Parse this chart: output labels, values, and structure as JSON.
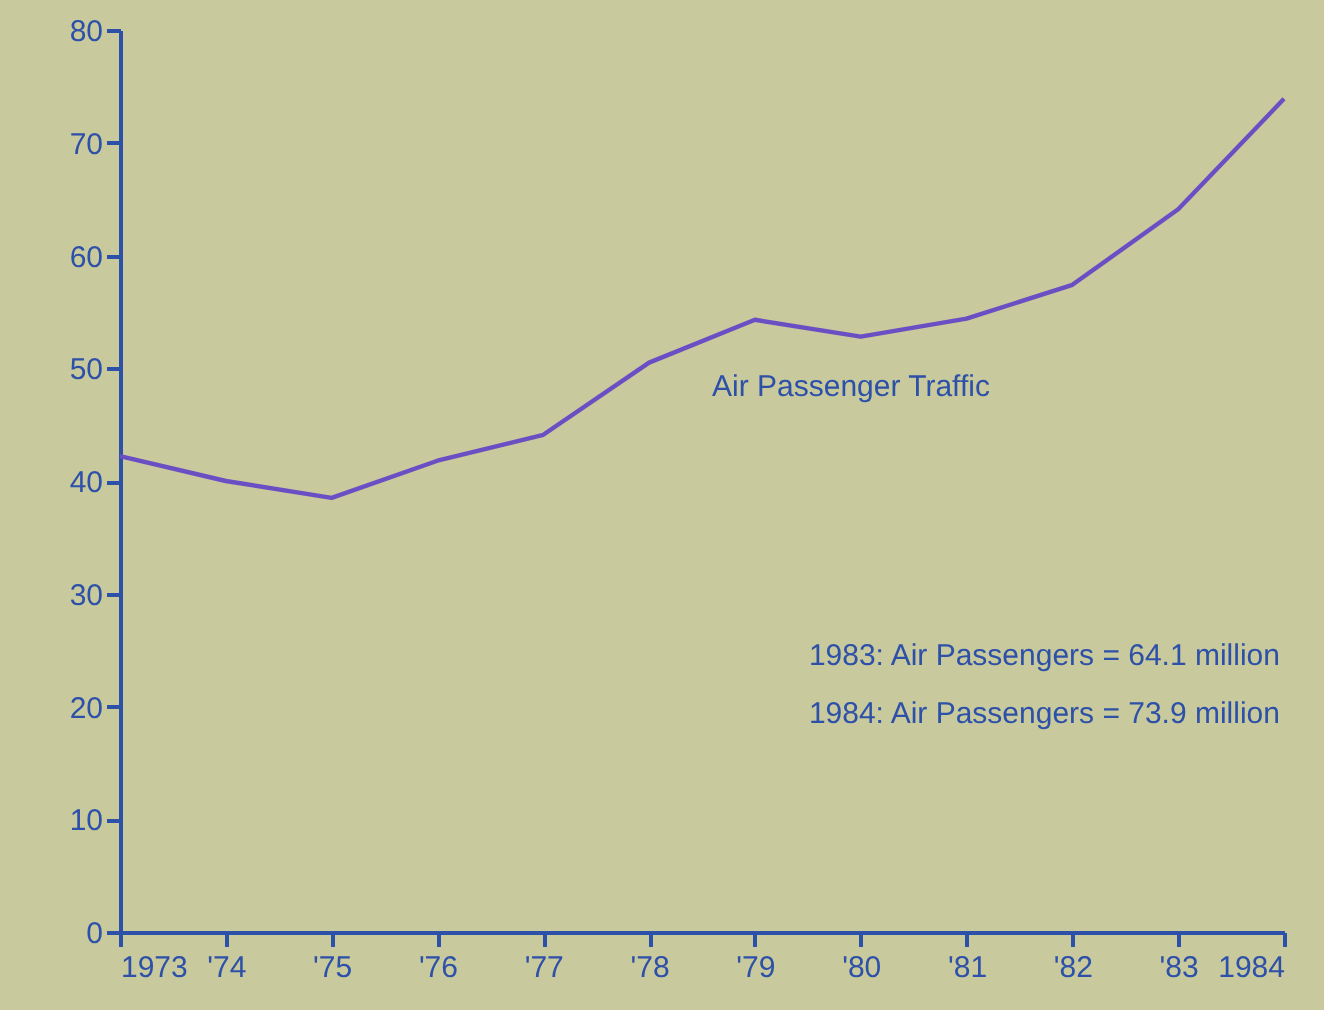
{
  "chart_data": {
    "type": "line",
    "x": [
      1973,
      1974,
      1975,
      1976,
      1977,
      1978,
      1979,
      1980,
      1981,
      1982,
      1983,
      1984
    ],
    "series": [
      {
        "name": "Air Passenger Traffic",
        "color": "#6a4fc4",
        "values": [
          42.2,
          40.0,
          38.5,
          41.8,
          44.1,
          50.5,
          54.3,
          52.8,
          54.4,
          57.4,
          64.1,
          73.9
        ]
      }
    ],
    "xlim": [
      1973,
      1984
    ],
    "xticks": [
      {
        "value": 1973,
        "label": "1973"
      },
      {
        "value": 1974,
        "label": "'74"
      },
      {
        "value": 1975,
        "label": "'75"
      },
      {
        "value": 1976,
        "label": "'76"
      },
      {
        "value": 1977,
        "label": "'77"
      },
      {
        "value": 1978,
        "label": "'78"
      },
      {
        "value": 1979,
        "label": "'79"
      },
      {
        "value": 1980,
        "label": "'80"
      },
      {
        "value": 1981,
        "label": "'81"
      },
      {
        "value": 1982,
        "label": "'82"
      },
      {
        "value": 1983,
        "label": "'83"
      },
      {
        "value": 1984,
        "label": "1984"
      }
    ],
    "ylim": [
      0,
      80
    ],
    "yticks": [
      0,
      10,
      20,
      30,
      40,
      50,
      60,
      70,
      80
    ],
    "annotations": [
      "1983: Air Passengers = 64.1 million",
      "1984: Air Passengers = 73.9 million"
    ],
    "grid": false,
    "marker": "none",
    "line_style": "solid"
  }
}
